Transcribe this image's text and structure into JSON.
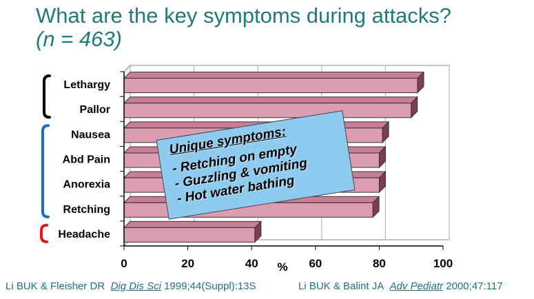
{
  "slide": {
    "title": "What are the key symptoms during attacks?",
    "subtitle": "(n = 463)"
  },
  "callout": {
    "title": "Unique symptoms:",
    "items": [
      "- Retching on empty",
      "- Guzzling & vomiting",
      "- Hot water bathing"
    ]
  },
  "citations": [
    {
      "authors": "Li BUK & Fleisher DR",
      "journal": "Dig Dis Sci",
      "details": "1999;44(Suppl):13S"
    },
    {
      "authors": "Li BUK & Balint JA",
      "journal": "Adv Pediatr",
      "details": "2000;47:117"
    }
  ],
  "colors": {
    "title": "#217a7a",
    "bar_front": "#dc9cb3",
    "bar_top": "#c87d98",
    "bar_side": "#7d3e55",
    "callout_fill": "#8fcbee",
    "citation": "#1f6f8b",
    "bracket_top": "#000000",
    "bracket_middle": "#1a6fc4",
    "bracket_bottom": "#e5141f"
  },
  "chart_data": {
    "type": "bar",
    "orientation": "horizontal",
    "style": "3d",
    "categories": [
      "Lethargy",
      "Pallor",
      "Nausea",
      "Abd Pain",
      "Anorexia",
      "Retching",
      "Headache"
    ],
    "values": [
      92,
      90,
      81,
      80,
      80,
      78,
      41
    ],
    "xlabel": "%",
    "xlim": [
      0,
      100
    ],
    "xticks": [
      "0",
      "20",
      "40",
      "60",
      "80",
      "100"
    ],
    "grid": true,
    "category_groups": [
      {
        "members": [
          "Lethargy",
          "Pallor"
        ],
        "bracket_color": "#000000"
      },
      {
        "members": [
          "Nausea",
          "Abd Pain",
          "Anorexia",
          "Retching"
        ],
        "bracket_color": "#1a6fc4"
      },
      {
        "members": [
          "Headache"
        ],
        "bracket_color": "#e5141f"
      }
    ]
  }
}
